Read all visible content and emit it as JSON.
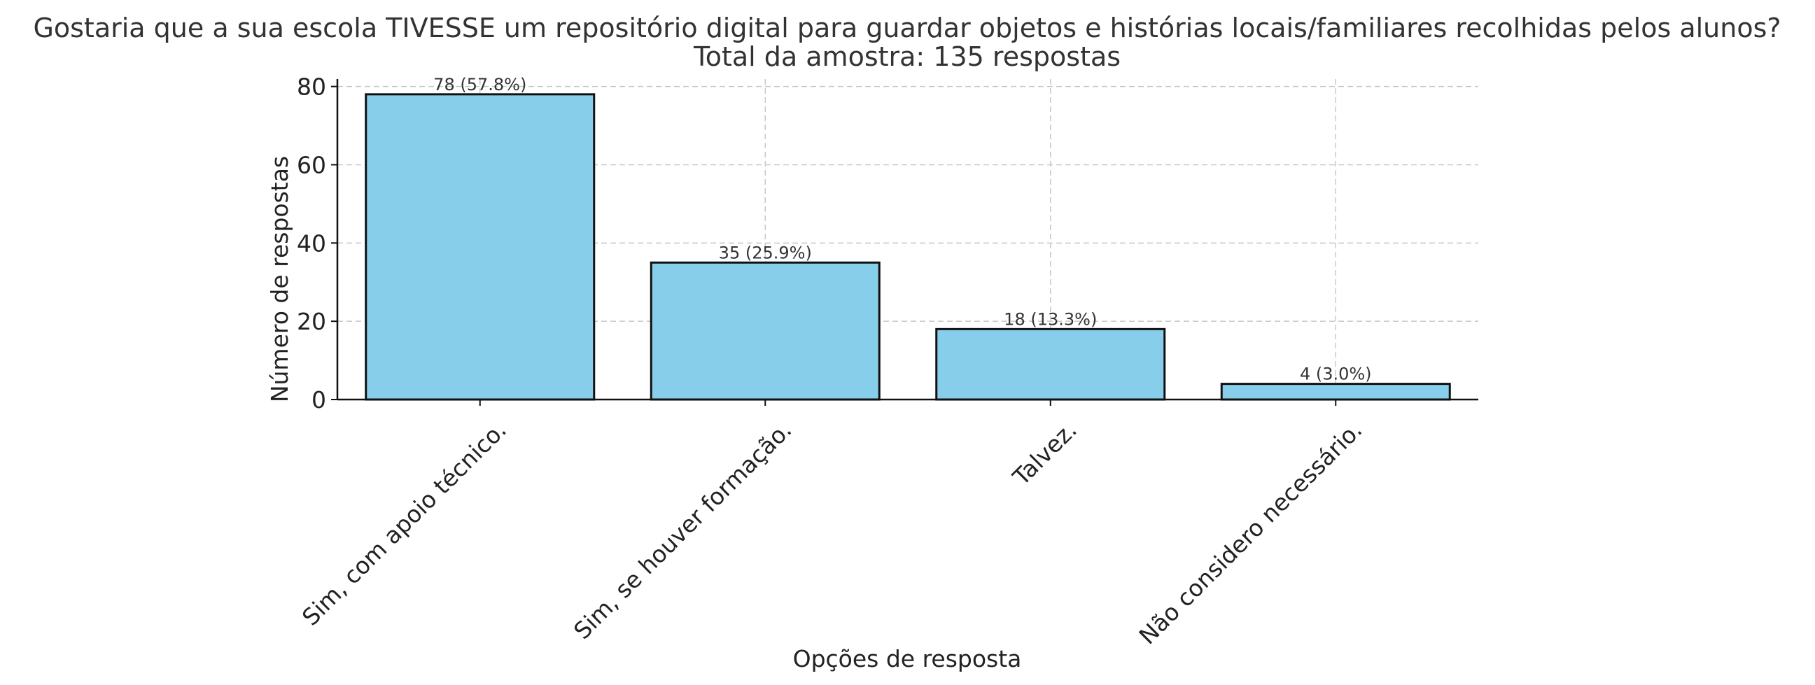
{
  "chart_data": {
    "type": "bar",
    "title": "Gostaria que a sua escola TIVESSE um repositório digital para guardar objetos e histórias locais/familiares recolhidas pelos alunos?",
    "subtitle": "Total da amostra: 135 respostas",
    "xlabel": "Opções de resposta",
    "ylabel": "Número de respostas",
    "categories": [
      "Sim, com apoio técnico.",
      "Sim, se houver formação.",
      "Talvez.",
      "Não considero necessário."
    ],
    "values": [
      78,
      35,
      18,
      4
    ],
    "data_labels": [
      "78 (57.8%)",
      "35 (25.9%)",
      "18 (13.3%)",
      "4 (3.0%)"
    ],
    "ylim": [
      0,
      81.9
    ],
    "yticks": [
      0,
      20,
      40,
      60,
      80
    ],
    "grid": true,
    "bar_color": "#87ceeb",
    "bar_edge_color": "#111111"
  }
}
